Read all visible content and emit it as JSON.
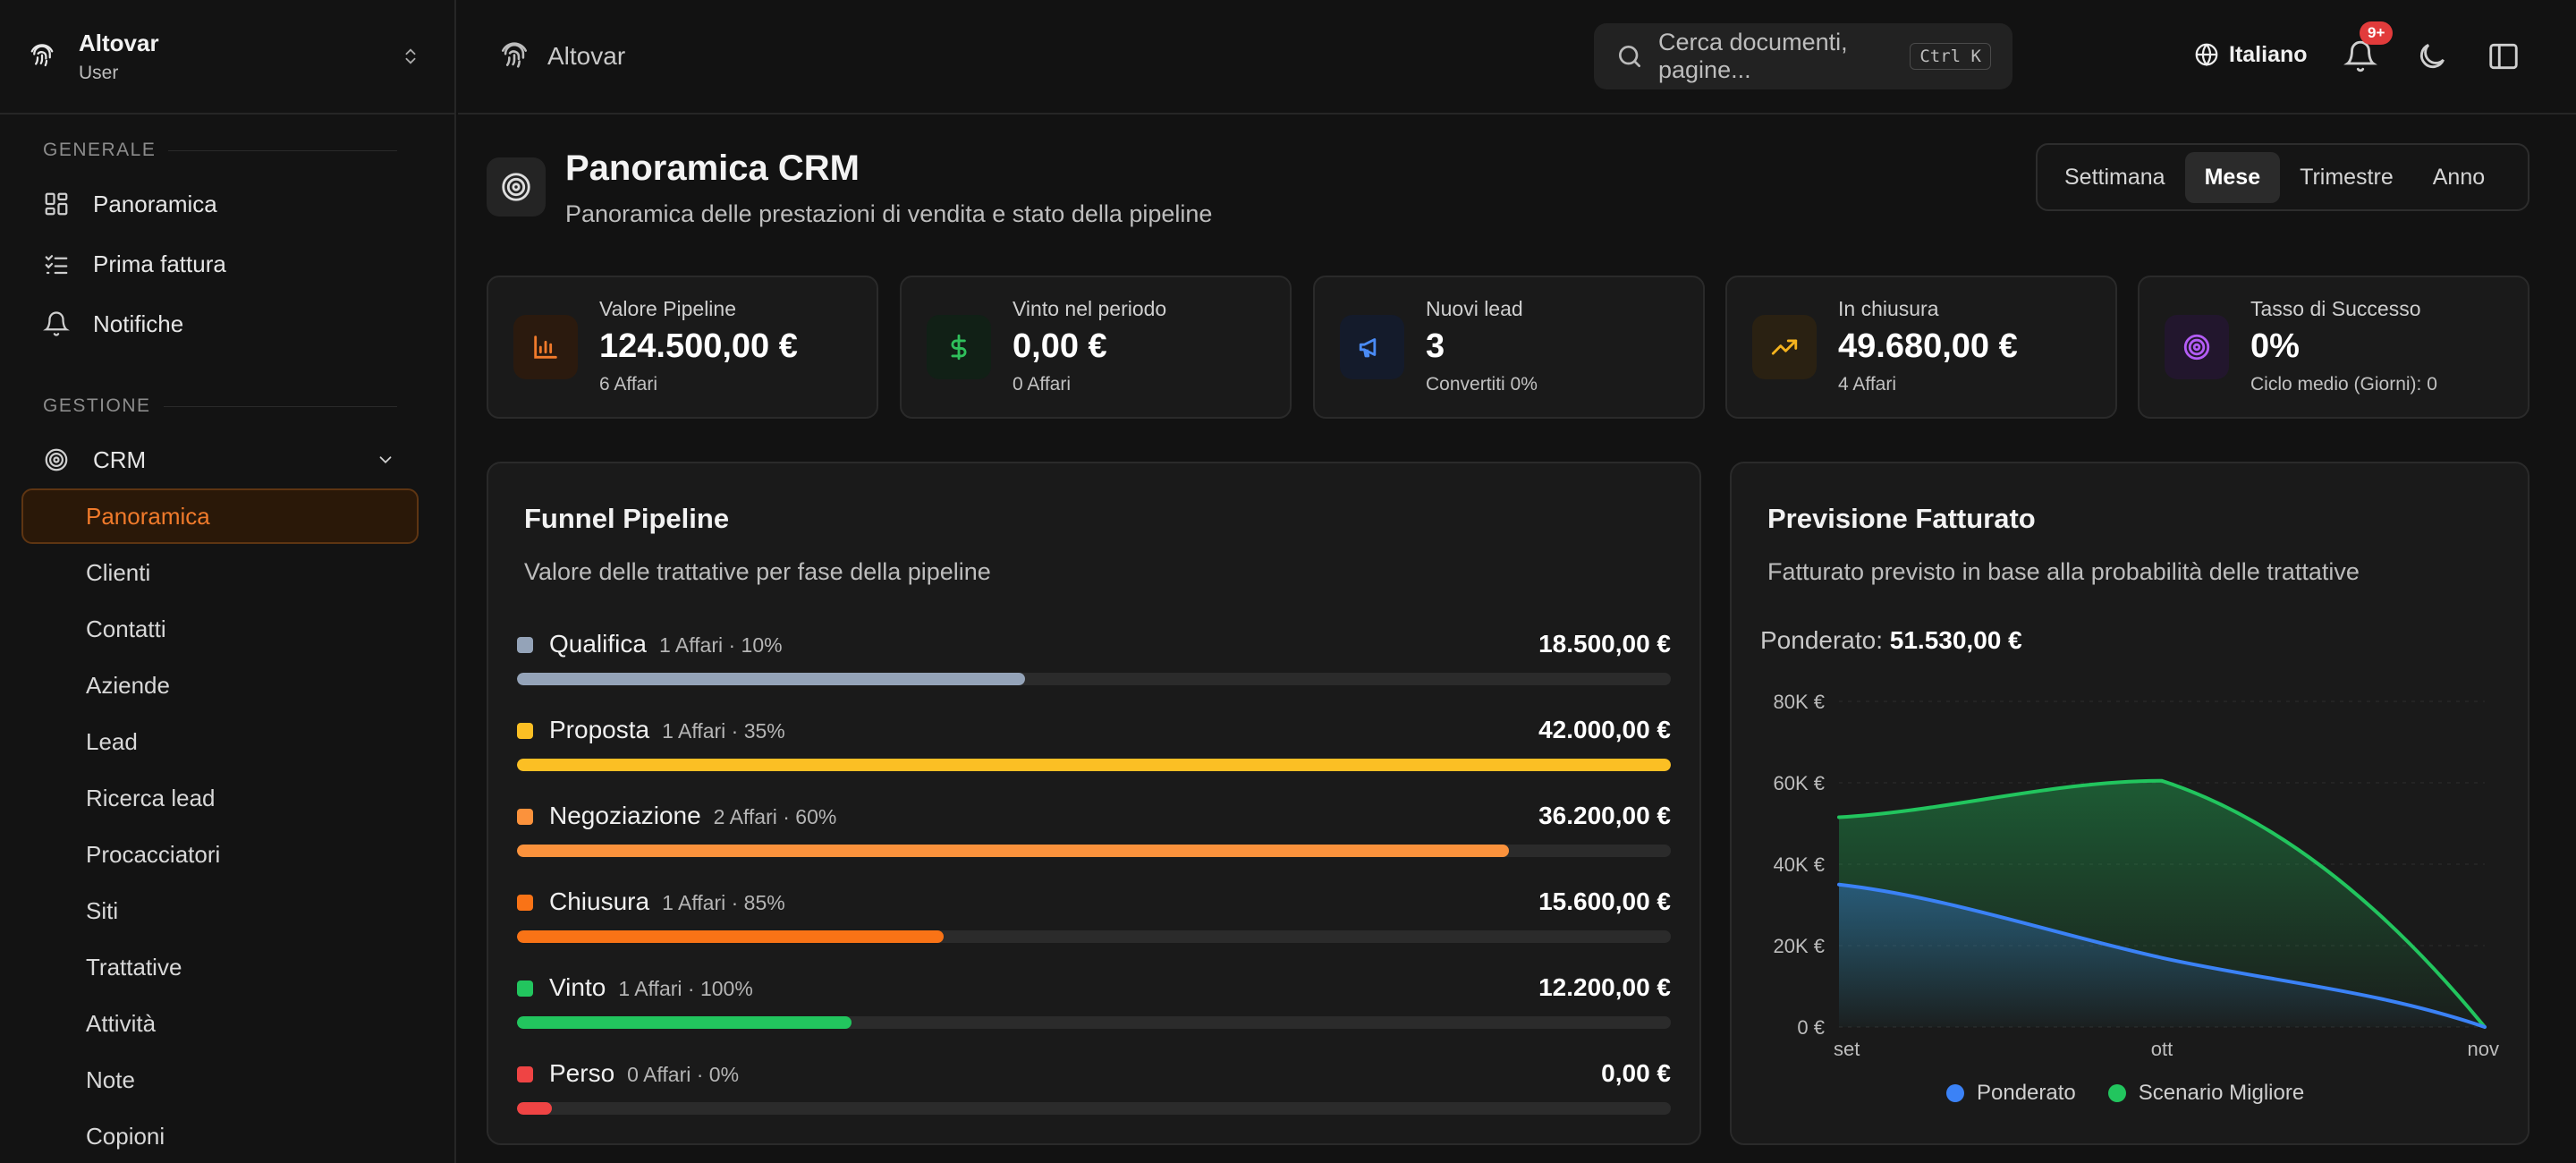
{
  "org": {
    "name": "Altovar",
    "role": "User"
  },
  "sidebar": {
    "groups": [
      "GENERALE",
      "GESTIONE"
    ],
    "general_items": [
      {
        "label": "Panoramica",
        "icon": "dashboard-icon"
      },
      {
        "label": "Prima fattura",
        "icon": "checklist-icon"
      },
      {
        "label": "Notifiche",
        "icon": "bell-icon"
      }
    ],
    "crm_label": "CRM",
    "crm_items": [
      "Panoramica",
      "Clienti",
      "Contatti",
      "Aziende",
      "Lead",
      "Ricerca lead",
      "Procacciatori",
      "Siti",
      "Trattative",
      "Attività",
      "Note",
      "Copioni"
    ],
    "crm_active": "Panoramica"
  },
  "header": {
    "breadcrumb": "Altovar",
    "search_placeholder": "Cerca documenti, pagine...",
    "shortcut": "Ctrl K",
    "language": "Italiano",
    "notifications_badge": "9+"
  },
  "page": {
    "title": "Panoramica CRM",
    "subtitle": "Panoramica delle prestazioni di vendita e stato della pipeline",
    "periods": [
      "Settimana",
      "Mese",
      "Trimestre",
      "Anno"
    ],
    "active_period": "Mese"
  },
  "kpis": [
    {
      "label": "Valore Pipeline",
      "value": "124.500,00 €",
      "sub": "6 Affari",
      "icon": "bar-chart-icon",
      "color": "#f07a2b"
    },
    {
      "label": "Vinto nel periodo",
      "value": "0,00 €",
      "sub": "0 Affari",
      "icon": "dollar-icon",
      "color": "#2fbf5b"
    },
    {
      "label": "Nuovi lead",
      "value": "3",
      "sub": "Convertiti 0%",
      "icon": "megaphone-icon",
      "color": "#4a8bf5"
    },
    {
      "label": "In chiusura",
      "value": "49.680,00 €",
      "sub": "4 Affari",
      "icon": "trending-up-icon",
      "color": "#f5b31e"
    },
    {
      "label": "Tasso di Successo",
      "value": "0%",
      "sub": "Ciclo medio (Giorni): 0",
      "icon": "target-icon",
      "color": "#b35cf5"
    }
  ],
  "funnel": {
    "title": "Funnel Pipeline",
    "subtitle": "Valore delle trattative per fase della pipeline",
    "stages": [
      {
        "name": "Qualifica",
        "meta": "1 Affari · 10%",
        "value": "18.500,00 €",
        "fill": 0.44,
        "color": "#94a3b8"
      },
      {
        "name": "Proposta",
        "meta": "1 Affari · 35%",
        "value": "42.000,00 €",
        "fill": 1.0,
        "color": "#fbbf24"
      },
      {
        "name": "Negoziazione",
        "meta": "2 Affari · 60%",
        "value": "36.200,00 €",
        "fill": 0.86,
        "color": "#fb923c"
      },
      {
        "name": "Chiusura",
        "meta": "1 Affari · 85%",
        "value": "15.600,00 €",
        "fill": 0.37,
        "color": "#f97316"
      },
      {
        "name": "Vinto",
        "meta": "1 Affari · 100%",
        "value": "12.200,00 €",
        "fill": 0.29,
        "color": "#22c55e"
      },
      {
        "name": "Perso",
        "meta": "0 Affari · 0%",
        "value": "0,00 €",
        "fill": 0.03,
        "color": "#ef4444"
      }
    ]
  },
  "forecast": {
    "title": "Previsione Fatturato",
    "subtitle": "Fatturato previsto in base alla probabilità delle trattative",
    "weighted_label": "Ponderato:",
    "weighted_value": "51.530,00 €"
  },
  "chart_data": {
    "type": "area",
    "x": [
      "set",
      "ott",
      "nov"
    ],
    "series": [
      {
        "name": "Ponderato",
        "values": [
          35000,
          17000,
          0
        ],
        "color": "#3b82f6"
      },
      {
        "name": "Scenario Migliore",
        "values": [
          51530,
          60500,
          0
        ],
        "color": "#22c55e"
      }
    ],
    "y_ticks": [
      "0 €",
      "20K €",
      "40K €",
      "60K €",
      "80K €"
    ],
    "ylim": [
      0,
      80000
    ],
    "grid": true,
    "legend": "bottom"
  }
}
